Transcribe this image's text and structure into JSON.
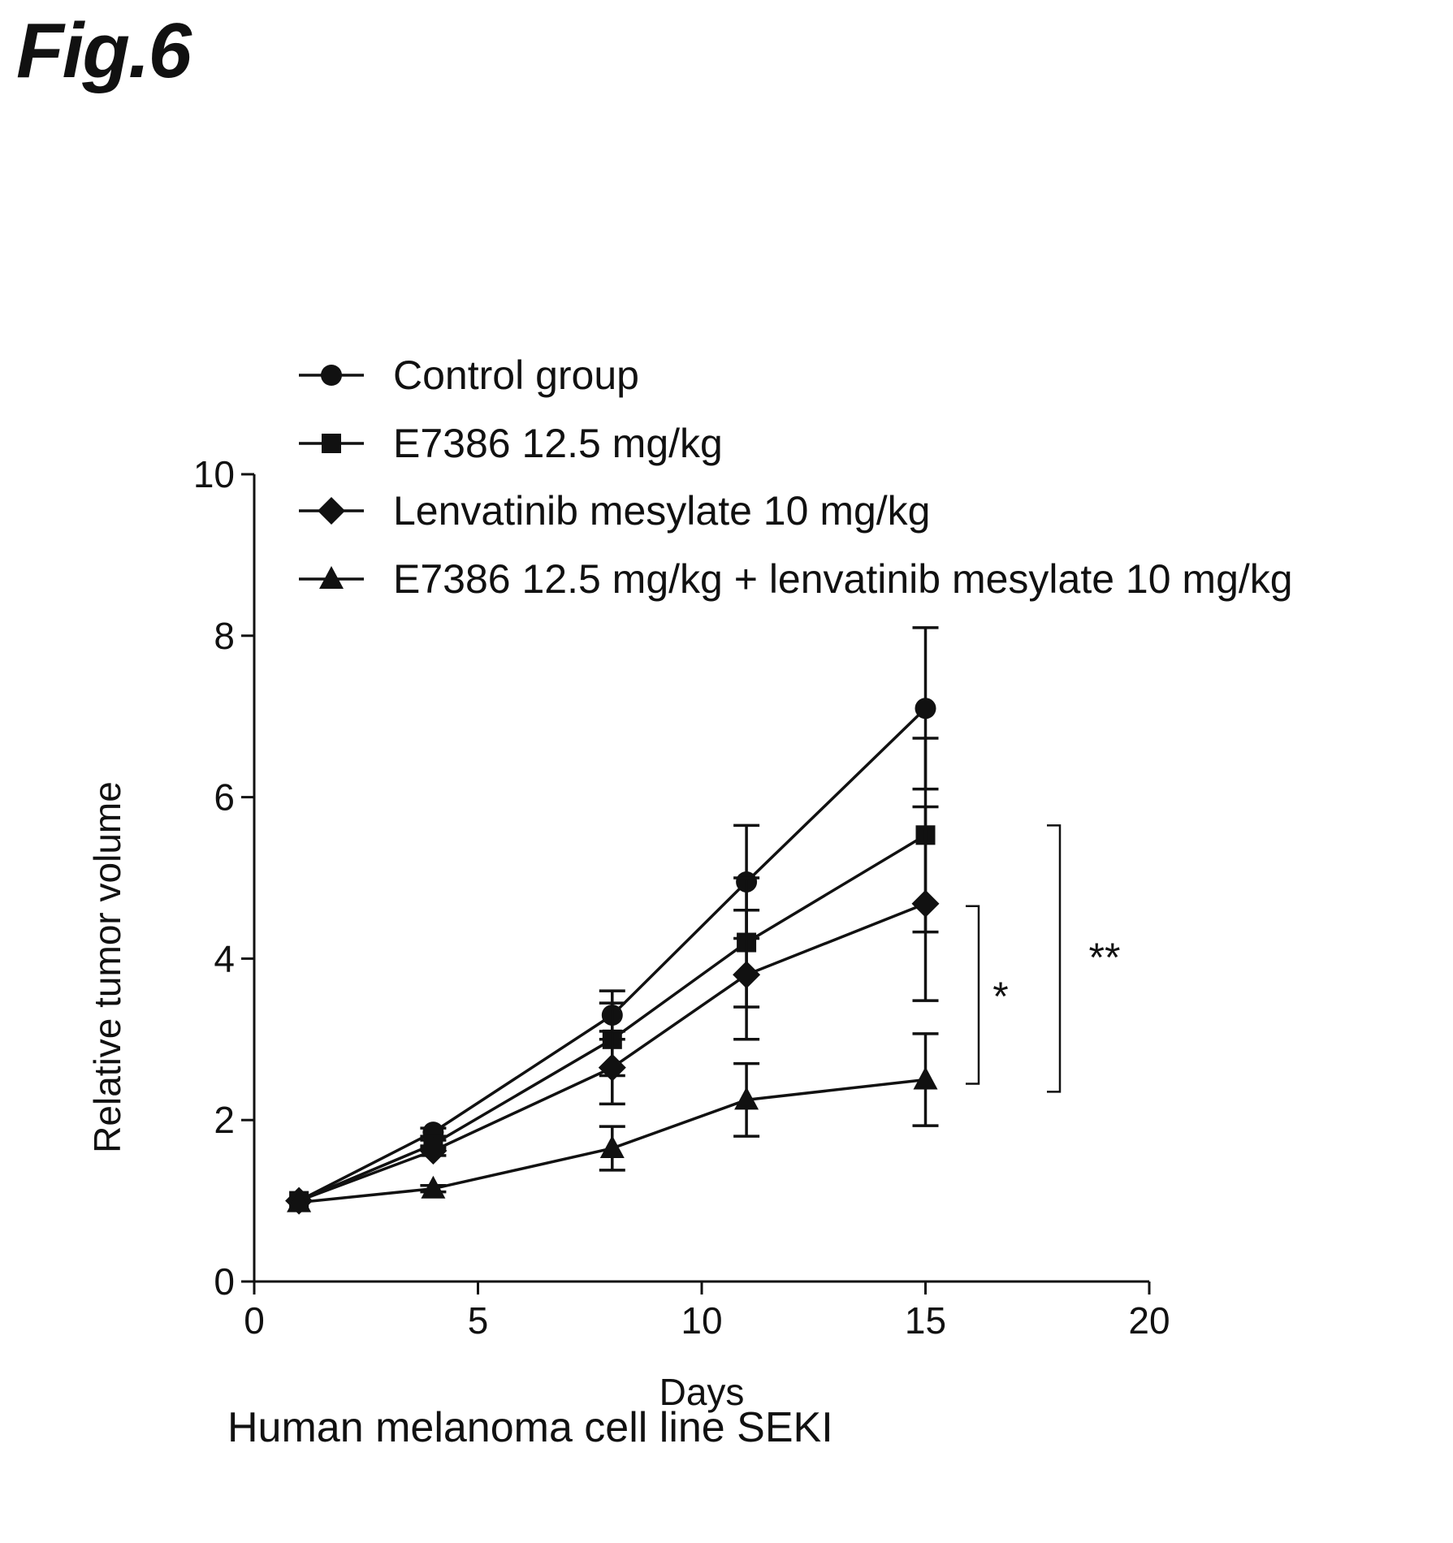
{
  "figure": {
    "label": "Fig.6",
    "caption": "Human melanoma cell line SEKI"
  },
  "chart_data": {
    "type": "line",
    "title": "",
    "xlabel": "Days",
    "ylabel": "Relative tumor volume",
    "xlim": [
      0,
      20
    ],
    "ylim": [
      0,
      10
    ],
    "xticks": [
      0,
      5,
      10,
      15,
      20
    ],
    "yticks": [
      0,
      2,
      4,
      6,
      8,
      10
    ],
    "grid": false,
    "legend_position": "top-left",
    "x": [
      1,
      4,
      8,
      11,
      15
    ],
    "series": [
      {
        "name": "Control group",
        "marker": "circle",
        "values": [
          1.0,
          1.85,
          3.3,
          4.95,
          7.1
        ],
        "error": [
          0,
          0.05,
          0.3,
          0.7,
          1.0
        ]
      },
      {
        "name": "E7386 12.5 mg/kg",
        "marker": "square",
        "values": [
          1.0,
          1.7,
          3.0,
          4.2,
          5.53
        ],
        "error": [
          0,
          0.05,
          0.45,
          0.8,
          1.2
        ]
      },
      {
        "name": "Lenvatinib mesylate 10 mg/kg",
        "marker": "diamond",
        "values": [
          1.0,
          1.62,
          2.65,
          3.8,
          4.68
        ],
        "error": [
          0,
          0.06,
          0.45,
          0.8,
          1.2
        ]
      },
      {
        "name": "E7386 12.5 mg/kg + lenvatinib mesylate 10 mg/kg",
        "marker": "triangle",
        "values": [
          0.98,
          1.15,
          1.65,
          2.25,
          2.5
        ],
        "error": [
          0,
          0.04,
          0.27,
          0.45,
          0.57
        ]
      }
    ],
    "annotations": [
      {
        "text": "*",
        "y_from": 2.45,
        "y_to": 4.65
      },
      {
        "text": "**",
        "y_from": 2.35,
        "y_to": 5.65
      }
    ]
  }
}
